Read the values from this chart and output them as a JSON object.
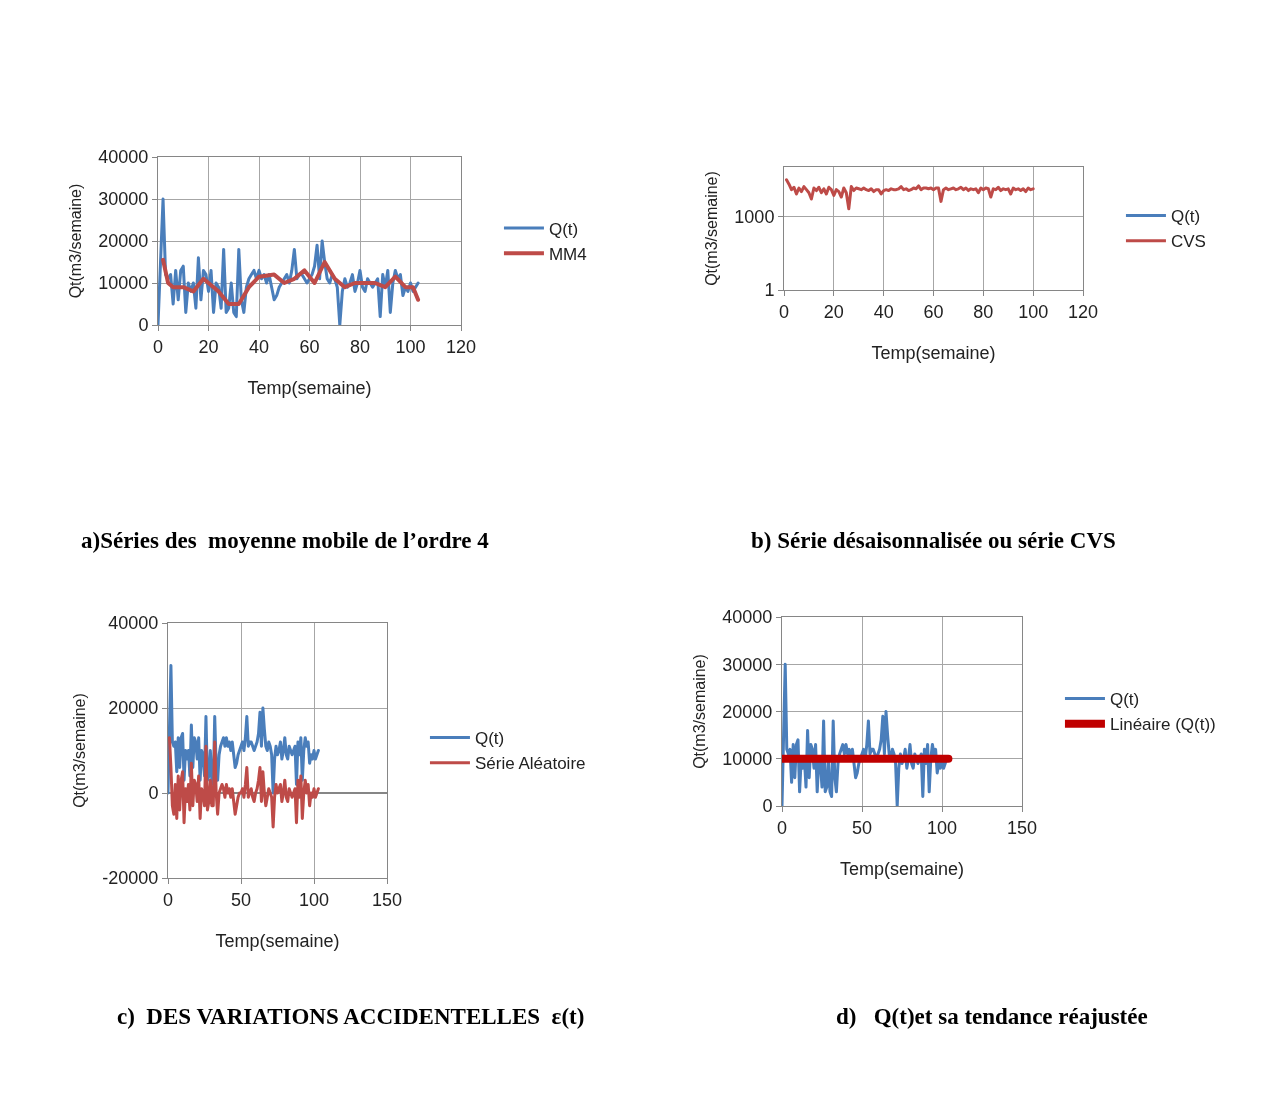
{
  "chart_data": [
    {
      "type": "line",
      "xlabel": "Temp(semaine)",
      "ylabel": "Qt(m3/semaine)",
      "annotations": [
        "a)Séries des  moyenne mobile de l’ordre 4"
      ],
      "xlim": [
        0,
        120
      ],
      "xticks": [
        0,
        20,
        40,
        60,
        80,
        100,
        120
      ],
      "ylim": [
        0,
        40000
      ],
      "yticks": [
        0,
        10000,
        20000,
        30000,
        40000
      ],
      "grid": true,
      "legend": "right",
      "x": [
        0,
        1,
        2,
        3,
        4,
        5,
        6,
        7,
        8,
        9,
        10,
        11,
        12,
        13,
        14,
        15,
        16,
        17,
        18,
        19,
        20,
        21,
        22,
        23,
        24,
        25,
        26,
        27,
        28,
        29,
        30,
        31,
        32,
        33,
        34,
        35,
        36,
        37,
        38,
        39,
        40,
        41,
        42,
        43,
        44,
        45,
        46,
        47,
        48,
        49,
        50,
        51,
        52,
        53,
        54,
        55,
        56,
        57,
        58,
        59,
        60,
        61,
        62,
        63,
        64,
        65,
        66,
        67,
        68,
        69,
        70,
        71,
        72,
        73,
        74,
        75,
        76,
        77,
        78,
        79,
        80,
        81,
        82,
        83,
        84,
        85,
        86,
        87,
        88,
        89,
        90,
        91,
        92,
        93,
        94,
        95,
        96,
        97,
        98,
        99,
        100,
        101,
        102,
        103
      ],
      "series": [
        {
          "name": "Q(t)",
          "color": "#4a7ebb",
          "values": [
            0,
            15000,
            30000,
            12000,
            11000,
            12000,
            5000,
            13000,
            6000,
            13000,
            14000,
            3000,
            10000,
            8000,
            10000,
            4000,
            16000,
            6000,
            13000,
            12000,
            8000,
            13000,
            3000,
            10000,
            9000,
            4000,
            18000,
            3000,
            4000,
            10000,
            3000,
            2000,
            18000,
            6000,
            3000,
            9000,
            11000,
            12000,
            13000,
            11000,
            13000,
            11000,
            12000,
            10000,
            12000,
            9000,
            6000,
            7000,
            9000,
            10000,
            11000,
            12000,
            10000,
            13000,
            18000,
            11000,
            12000,
            12000,
            11000,
            10000,
            11000,
            12000,
            14000,
            19000,
            11000,
            20000,
            15000,
            11000,
            10000,
            12000,
            11000,
            9000,
            0,
            8000,
            11000,
            9000,
            10000,
            12000,
            8000,
            10000,
            13000,
            9000,
            8000,
            11000,
            10000,
            9000,
            10000,
            11000,
            2000,
            12000,
            9000,
            13000,
            3000,
            10000,
            13000,
            11000,
            12000,
            7000,
            9000,
            8000,
            10000,
            8000,
            9000,
            10000
          ]
        },
        {
          "name": "MM4",
          "color": "#be4b48",
          "x": [
            2,
            4,
            6,
            10,
            14,
            18,
            22,
            24,
            28,
            32,
            36,
            40,
            46,
            50,
            54,
            58,
            62,
            66,
            70,
            74,
            78,
            82,
            86,
            90,
            94,
            98,
            101,
            103
          ],
          "values": [
            15500,
            10000,
            9000,
            9000,
            8000,
            11000,
            9000,
            8000,
            5000,
            5000,
            9000,
            11500,
            12000,
            10000,
            11000,
            13000,
            10000,
            15000,
            11000,
            9000,
            10000,
            10000,
            10000,
            9000,
            11500,
            9000,
            9000,
            6000
          ]
        }
      ]
    },
    {
      "type": "line",
      "xlabel": "Temp(semaine)",
      "ylabel": "Qt(m3/semaine)",
      "annotations": [
        "b) Série désaisonnalisée ou série CVS"
      ],
      "xlim": [
        0,
        120
      ],
      "xticks": [
        0,
        20,
        40,
        60,
        80,
        100,
        120
      ],
      "ylim": [
        1,
        100000
      ],
      "yticks": [
        1,
        1000
      ],
      "log": true,
      "grid": true,
      "legend": "right",
      "x": [
        1,
        2,
        3,
        4,
        5,
        6,
        7,
        8,
        9,
        10,
        11,
        12,
        13,
        14,
        15,
        16,
        17,
        18,
        19,
        20,
        21,
        22,
        23,
        24,
        25,
        26,
        27,
        28,
        29,
        30,
        31,
        32,
        33,
        34,
        35,
        36,
        37,
        38,
        39,
        40,
        41,
        42,
        43,
        44,
        45,
        46,
        47,
        48,
        49,
        50,
        51,
        52,
        53,
        54,
        55,
        56,
        57,
        58,
        59,
        60,
        61,
        62,
        63,
        64,
        65,
        66,
        67,
        68,
        69,
        70,
        71,
        72,
        73,
        74,
        75,
        76,
        77,
        78,
        79,
        80,
        81,
        82,
        83,
        84,
        85,
        86,
        87,
        88,
        89,
        90,
        91,
        92,
        93,
        94,
        95,
        96,
        97,
        98,
        99,
        100
      ],
      "series": [
        {
          "name": "Q(t)",
          "color": "#4a7ebb",
          "values": [
            null,
            null,
            null,
            null,
            null,
            null,
            null,
            null,
            null,
            null,
            null,
            null,
            null,
            null,
            null,
            null,
            null,
            null,
            null,
            null,
            null,
            null,
            null,
            null,
            null,
            null,
            null,
            null,
            null,
            null,
            null,
            null,
            null,
            null,
            null,
            null,
            null,
            null,
            null,
            null,
            null,
            null,
            null,
            null,
            null,
            null,
            null,
            null,
            null,
            null,
            null,
            null,
            null,
            null,
            null,
            null,
            null,
            null,
            null,
            null,
            null,
            null,
            null,
            null,
            null,
            null,
            null,
            null,
            null,
            null,
            null,
            null,
            null,
            null,
            null,
            null,
            null,
            null,
            null,
            null,
            null,
            null,
            null,
            null,
            null,
            null,
            null,
            null,
            null,
            null,
            null,
            null,
            null,
            null,
            null,
            null,
            null,
            null,
            null,
            null
          ]
        },
        {
          "name": "CVS",
          "color": "#be4b48",
          "values": [
            30000,
            20000,
            12000,
            15000,
            8000,
            14000,
            10000,
            16000,
            12000,
            9000,
            5000,
            14000,
            11000,
            15000,
            9000,
            13000,
            8000,
            15000,
            12000,
            7000,
            12000,
            10000,
            6000,
            14000,
            9000,
            2000,
            16000,
            11000,
            14000,
            13000,
            12000,
            14000,
            12000,
            11000,
            13000,
            10000,
            12000,
            12000,
            8000,
            11000,
            12000,
            11000,
            13000,
            12000,
            12000,
            13000,
            16000,
            12000,
            13000,
            11000,
            12000,
            14000,
            13000,
            17000,
            12000,
            14000,
            14000,
            13000,
            14000,
            12000,
            14000,
            14000,
            4000,
            12000,
            14000,
            12000,
            13000,
            14000,
            12000,
            13000,
            15000,
            12000,
            14000,
            11000,
            13000,
            12000,
            13000,
            9000,
            14000,
            12000,
            14000,
            13000,
            6000,
            13000,
            12000,
            15000,
            11000,
            13000,
            12000,
            13000,
            8000,
            14000,
            12000,
            13000,
            11000,
            13000,
            10000,
            14000,
            12000,
            13000
          ]
        }
      ]
    },
    {
      "type": "line",
      "xlabel": "Temp(semaine)",
      "ylabel": "Qt(m3/semaine)",
      "annotations": [
        "c)  DES VARIATIONS ACCIDENTELLES  ε(t)"
      ],
      "xlim": [
        0,
        150
      ],
      "xticks": [
        0,
        50,
        100,
        150
      ],
      "ylim": [
        -20000,
        40000
      ],
      "yticks": [
        -20000,
        0,
        20000,
        40000
      ],
      "grid": true,
      "legend": "right",
      "x": [
        0,
        1,
        2,
        3,
        4,
        5,
        6,
        7,
        8,
        9,
        10,
        11,
        12,
        13,
        14,
        15,
        16,
        17,
        18,
        19,
        20,
        21,
        22,
        23,
        24,
        25,
        26,
        27,
        28,
        29,
        30,
        31,
        32,
        33,
        34,
        35,
        36,
        37,
        38,
        39,
        40,
        41,
        42,
        43,
        44,
        45,
        46,
        47,
        48,
        49,
        50,
        51,
        52,
        53,
        54,
        55,
        56,
        57,
        58,
        59,
        60,
        61,
        62,
        63,
        64,
        65,
        66,
        67,
        68,
        69,
        70,
        71,
        72,
        73,
        74,
        75,
        76,
        77,
        78,
        79,
        80,
        81,
        82,
        83,
        84,
        85,
        86,
        87,
        88,
        89,
        90,
        91,
        92,
        93,
        94,
        95,
        96,
        97,
        98,
        99,
        100,
        101,
        102,
        103
      ],
      "series": [
        {
          "name": "Q(t)",
          "color": "#4a7ebb",
          "values": [
            0,
            15000,
            30000,
            12000,
            11000,
            12000,
            5000,
            13000,
            6000,
            13000,
            14000,
            3000,
            10000,
            8000,
            10000,
            4000,
            16000,
            6000,
            13000,
            12000,
            8000,
            13000,
            3000,
            10000,
            9000,
            4000,
            18000,
            3000,
            4000,
            10000,
            3000,
            2000,
            18000,
            6000,
            3000,
            9000,
            11000,
            12000,
            13000,
            11000,
            13000,
            11000,
            12000,
            10000,
            12000,
            9000,
            6000,
            7000,
            9000,
            10000,
            11000,
            12000,
            10000,
            13000,
            18000,
            11000,
            12000,
            12000,
            11000,
            10000,
            11000,
            12000,
            14000,
            19000,
            11000,
            20000,
            15000,
            11000,
            10000,
            12000,
            11000,
            9000,
            0,
            8000,
            11000,
            9000,
            10000,
            12000,
            8000,
            10000,
            13000,
            9000,
            8000,
            11000,
            10000,
            9000,
            10000,
            11000,
            2000,
            12000,
            9000,
            13000,
            3000,
            10000,
            13000,
            11000,
            12000,
            7000,
            9000,
            8000,
            10000,
            8000,
            9000,
            10000
          ]
        },
        {
          "name": "Série Aléatoire",
          "color": "#be4b48",
          "values": [
            null,
            13000,
            6000,
            -3000,
            -5000,
            2000,
            -6000,
            4000,
            -4000,
            3000,
            5000,
            -7000,
            1000,
            -2000,
            2000,
            -4000,
            7000,
            -3000,
            3000,
            2000,
            -2000,
            4000,
            -6000,
            1000,
            0,
            -3000,
            11000,
            -4000,
            -2000,
            3000,
            -3000,
            -3000,
            12000,
            0,
            -5000,
            0,
            1000,
            2000,
            1000,
            -1000,
            2000,
            0,
            1000,
            -1000,
            1000,
            -2000,
            -5000,
            -3000,
            -1000,
            0,
            0,
            1000,
            -1000,
            2000,
            6000,
            -1000,
            0,
            1000,
            -1000,
            -2000,
            0,
            1000,
            3000,
            6000,
            -2000,
            5000,
            0,
            -3000,
            -1000,
            1000,
            0,
            -1000,
            -8000,
            -1000,
            2000,
            0,
            1000,
            2000,
            -2000,
            0,
            3000,
            -1000,
            -2000,
            1000,
            0,
            -1000,
            0,
            1000,
            -7000,
            3000,
            -1000,
            4000,
            -6000,
            0,
            3000,
            0,
            2000,
            -3000,
            0,
            -1000,
            1000,
            -1000,
            0,
            1000
          ]
        }
      ]
    },
    {
      "type": "line",
      "xlabel": "Temp(semaine)",
      "ylabel": "Qt(m3/semaine)",
      "annotations": [
        "d)   Q(t)et sa tendance réajustée"
      ],
      "xlim": [
        0,
        150
      ],
      "xticks": [
        0,
        50,
        100,
        150
      ],
      "ylim": [
        0,
        40000
      ],
      "yticks": [
        0,
        10000,
        20000,
        30000,
        40000
      ],
      "grid": true,
      "legend": "right",
      "x": [
        0,
        1,
        2,
        3,
        4,
        5,
        6,
        7,
        8,
        9,
        10,
        11,
        12,
        13,
        14,
        15,
        16,
        17,
        18,
        19,
        20,
        21,
        22,
        23,
        24,
        25,
        26,
        27,
        28,
        29,
        30,
        31,
        32,
        33,
        34,
        35,
        36,
        37,
        38,
        39,
        40,
        41,
        42,
        43,
        44,
        45,
        46,
        47,
        48,
        49,
        50,
        51,
        52,
        53,
        54,
        55,
        56,
        57,
        58,
        59,
        60,
        61,
        62,
        63,
        64,
        65,
        66,
        67,
        68,
        69,
        70,
        71,
        72,
        73,
        74,
        75,
        76,
        77,
        78,
        79,
        80,
        81,
        82,
        83,
        84,
        85,
        86,
        87,
        88,
        89,
        90,
        91,
        92,
        93,
        94,
        95,
        96,
        97,
        98,
        99,
        100,
        101,
        102,
        103
      ],
      "series": [
        {
          "name": "Q(t)",
          "color": "#4a7ebb",
          "values": [
            0,
            15000,
            30000,
            12000,
            11000,
            12000,
            5000,
            13000,
            6000,
            13000,
            14000,
            3000,
            10000,
            8000,
            10000,
            4000,
            16000,
            6000,
            13000,
            12000,
            8000,
            13000,
            3000,
            10000,
            9000,
            4000,
            18000,
            3000,
            4000,
            10000,
            3000,
            2000,
            18000,
            6000,
            3000,
            9000,
            11000,
            12000,
            13000,
            11000,
            13000,
            11000,
            12000,
            10000,
            12000,
            9000,
            6000,
            7000,
            9000,
            10000,
            11000,
            12000,
            10000,
            13000,
            18000,
            11000,
            12000,
            12000,
            11000,
            10000,
            11000,
            12000,
            14000,
            19000,
            11000,
            20000,
            15000,
            11000,
            10000,
            12000,
            11000,
            9000,
            0,
            8000,
            11000,
            9000,
            10000,
            12000,
            8000,
            10000,
            13000,
            9000,
            8000,
            11000,
            10000,
            9000,
            10000,
            11000,
            2000,
            12000,
            9000,
            13000,
            3000,
            10000,
            13000,
            11000,
            12000,
            7000,
            9000,
            8000,
            10000,
            8000,
            9000,
            10000
          ]
        },
        {
          "name": "Linéaire (Q(t))",
          "color": "#c00000",
          "x": [
            0,
            104
          ],
          "values": [
            10000,
            10000
          ]
        }
      ]
    }
  ]
}
